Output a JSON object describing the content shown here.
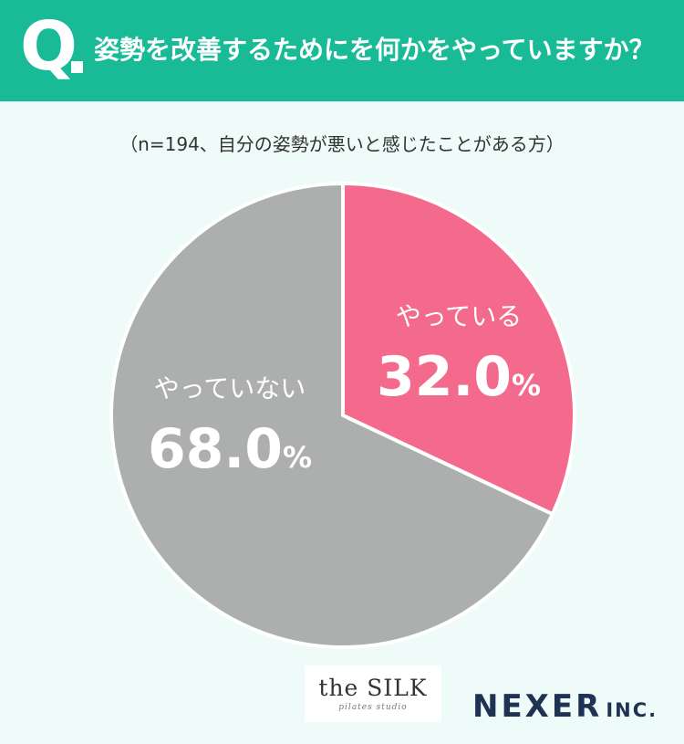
{
  "header": {
    "q_mark": "Q",
    "question": "姿勢を改善するためにを何かをやっていますか？"
  },
  "sample_note": "（n=194、自分の姿勢が悪いと感じたことがある方）",
  "colors": {
    "header_bg": "#19bb97",
    "background": "#eefbf8",
    "yes": "#f46a8c",
    "no": "#adafae"
  },
  "chart_data": {
    "type": "pie",
    "title": "",
    "slices": [
      {
        "label": "やっている",
        "value": 32.0,
        "color": "#f46a8c"
      },
      {
        "label": "やっていない",
        "value": 68.0,
        "color": "#adafae"
      }
    ],
    "unit": "%"
  },
  "labels": {
    "yes_name": "やっている",
    "yes_value": "32.0",
    "no_name": "やっていない",
    "no_value": "68.0",
    "pct": "%"
  },
  "logos": {
    "silk_main": "the SILK",
    "silk_sub": "pilates studio",
    "nexer": "NEXER",
    "nexer_inc": "INC."
  }
}
